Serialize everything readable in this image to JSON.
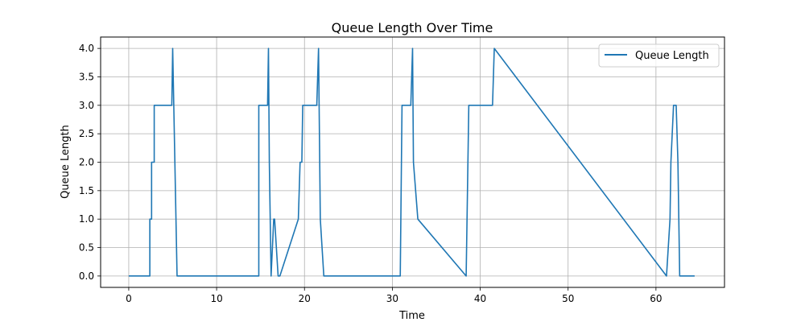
{
  "chart_data": {
    "type": "line",
    "title": "Queue Length Over Time",
    "xlabel": "Time",
    "ylabel": "Queue Length",
    "xlim": [
      -3.2,
      67.8
    ],
    "ylim": [
      -0.2,
      4.2
    ],
    "xticks": [
      0,
      10,
      20,
      30,
      40,
      50,
      60
    ],
    "xtick_labels": [
      "0",
      "10",
      "20",
      "30",
      "40",
      "50",
      "60"
    ],
    "yticks": [
      0.0,
      0.5,
      1.0,
      1.5,
      2.0,
      2.5,
      3.0,
      3.5,
      4.0
    ],
    "ytick_labels": [
      "0.0",
      "0.5",
      "1.0",
      "1.5",
      "2.0",
      "2.5",
      "3.0",
      "3.5",
      "4.0"
    ],
    "grid": true,
    "legend_position": "top-right",
    "series": [
      {
        "name": "Queue Length",
        "color": "#1f77b4",
        "x": [
          0,
          2.4,
          2.4,
          2.6,
          2.6,
          2.9,
          2.9,
          4.9,
          5.0,
          5.5,
          14.8,
          14.8,
          15.8,
          15.9,
          16.0,
          16.2,
          16.5,
          16.6,
          17.0,
          17.2,
          19.3,
          19.5,
          19.7,
          19.8,
          21.4,
          21.6,
          21.8,
          22.2,
          30.9,
          31.1,
          32.1,
          32.3,
          32.4,
          32.9,
          38.4,
          38.6,
          38.7,
          41.4,
          41.6,
          61.2,
          61.6,
          61.7,
          62.0,
          62.3,
          62.5,
          62.7,
          64.4
        ],
        "y": [
          0,
          0,
          1,
          1,
          2,
          2,
          3,
          3,
          4,
          0,
          0,
          3,
          3,
          4,
          2,
          0,
          1,
          1,
          0,
          0,
          1,
          2,
          2,
          3,
          3,
          4,
          1,
          0,
          0,
          3,
          3,
          4,
          2,
          1,
          0,
          2,
          3,
          3,
          4,
          0,
          1,
          2,
          3,
          3,
          2,
          0,
          0
        ]
      }
    ]
  }
}
